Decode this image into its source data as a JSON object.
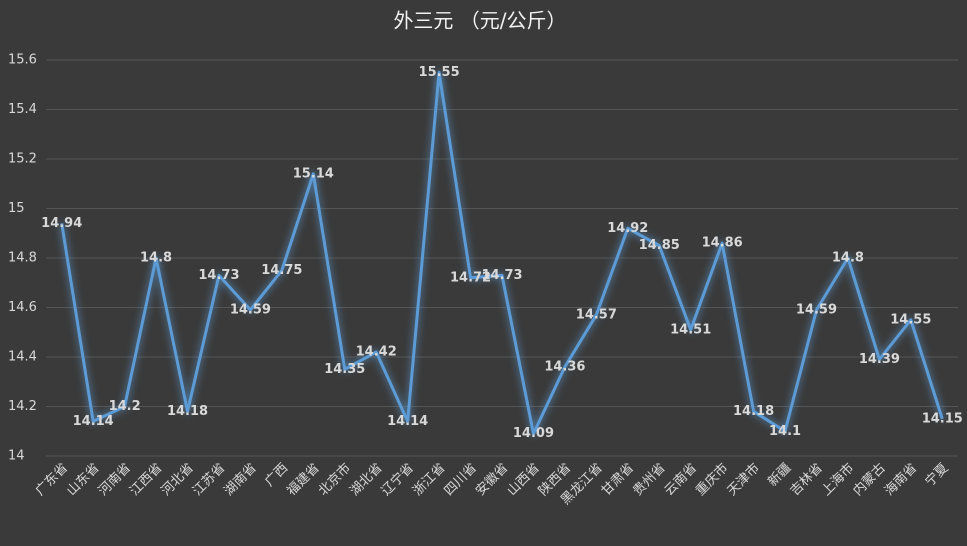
{
  "chart_data": {
    "type": "line",
    "title": "外三元 （元/公斤）",
    "categories": [
      "广东省",
      "山东省",
      "河南省",
      "江西省",
      "河北省",
      "江苏省",
      "湖南省",
      "广西",
      "福建省",
      "北京市",
      "湖北省",
      "辽宁省",
      "浙江省",
      "四川省",
      "安徽省",
      "山西省",
      "陕西省",
      "黑龙江省",
      "甘肃省",
      "贵州省",
      "云南省",
      "重庆市",
      "天津市",
      "新疆",
      "吉林省",
      "上海市",
      "内蒙古",
      "海南省",
      "宁夏"
    ],
    "values": [
      14.94,
      14.14,
      14.2,
      14.8,
      14.18,
      14.73,
      14.59,
      14.75,
      15.14,
      14.35,
      14.42,
      14.14,
      15.55,
      14.72,
      14.73,
      14.09,
      14.36,
      14.57,
      14.92,
      14.85,
      14.51,
      14.86,
      14.18,
      14.1,
      14.59,
      14.8,
      14.39,
      14.55,
      14.15
    ],
    "color": "#5b9bd5",
    "ylim": [
      14,
      15.6
    ],
    "yticks": [
      14,
      14.2,
      14.4,
      14.6,
      14.8,
      15,
      15.2,
      15.4,
      15.6
    ],
    "grid": true
  }
}
